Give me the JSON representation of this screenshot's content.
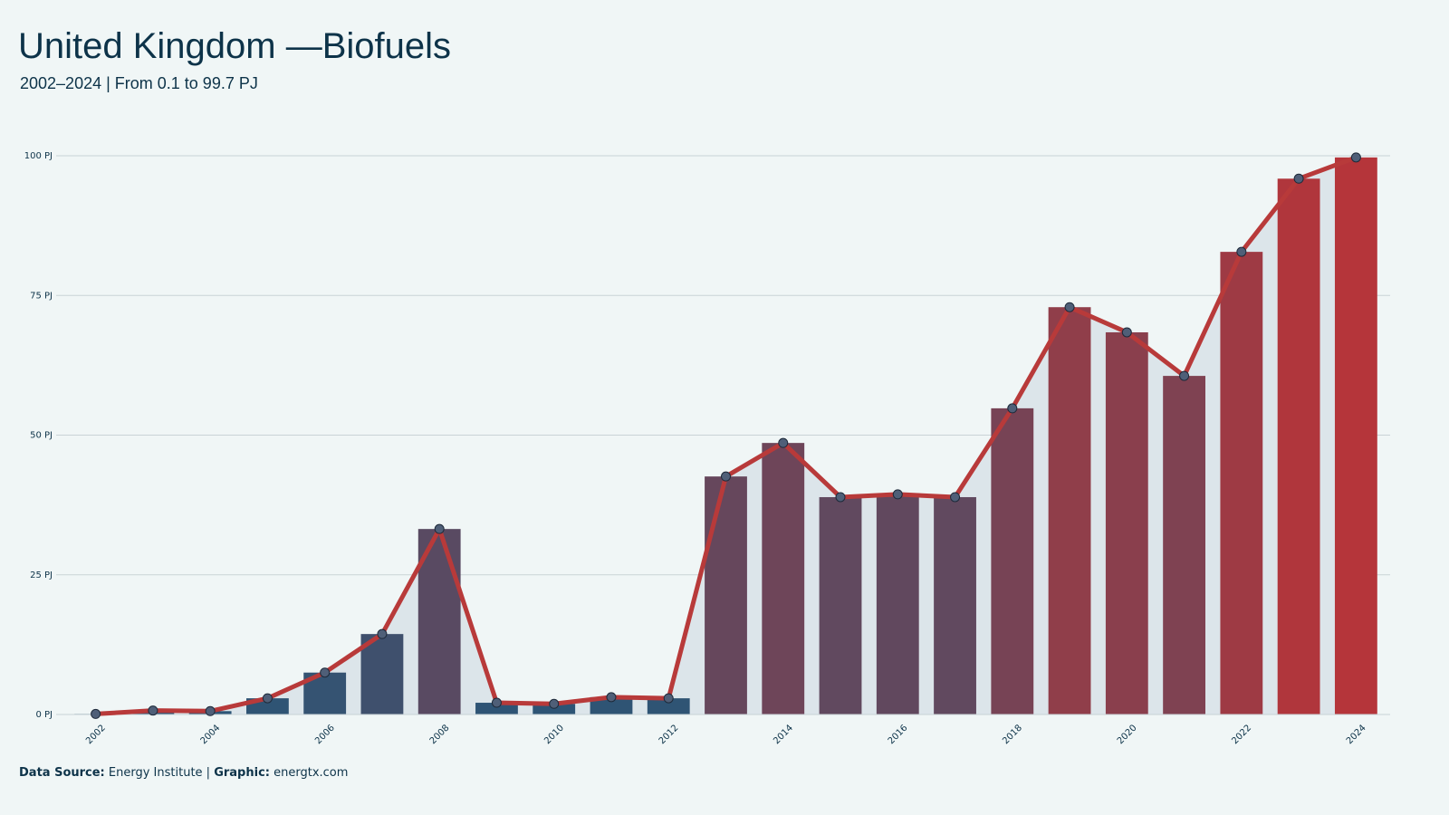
{
  "chart_data": {
    "type": "bar",
    "title": "United Kingdom —Biofuels",
    "subtitle": "2002–2024 | From 0.1 to 99.7 PJ",
    "categories": [
      "2002",
      null,
      "2004",
      null,
      "2006",
      null,
      "2008",
      null,
      "2010",
      null,
      "2012",
      null,
      "2014",
      null,
      "2016",
      null,
      "2018",
      null,
      "2020",
      null,
      "2022",
      null,
      "2024"
    ],
    "values": [
      0.1,
      0.7,
      0.6,
      2.9,
      7.5,
      14.4,
      33.2,
      2.1,
      1.9,
      3.1,
      2.9,
      42.6,
      48.6,
      38.9,
      39.4,
      38.9,
      54.8,
      72.9,
      68.4,
      60.6,
      82.8,
      95.9,
      99.7
    ],
    "color_low": "#2b5576",
    "color_high": "#b5353a",
    "line_color": "#b83a3a",
    "area_color": "#dce5ea",
    "marker_color": "#4f5f78",
    "ylim": [
      0,
      100
    ],
    "yticks": [
      {
        "value": 0,
        "label": "0 PJ"
      },
      {
        "value": 25,
        "label": "25 PJ"
      },
      {
        "value": 50,
        "label": "50 PJ"
      },
      {
        "value": 75,
        "label": "75 PJ"
      },
      {
        "value": 100,
        "label": "100 PJ"
      }
    ],
    "grid": true,
    "footer": {
      "source_label": "Data Source:",
      "source": "Energy Institute |",
      "graphic_label": "Graphic:",
      "graphic": "energtx.com"
    }
  }
}
